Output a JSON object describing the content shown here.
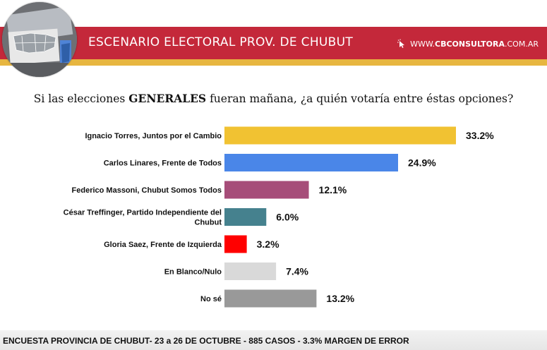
{
  "header": {
    "title": "ESCENARIO ELECTORAL PROV. DE CHUBUT",
    "site": {
      "prefix": "WWW.",
      "brand": "CBCONSULTORA",
      "suffix": ".COM.AR"
    }
  },
  "question": {
    "before": "Si las elecciones ",
    "emph": "GENERALES",
    "after": " fueran mañana, ¿a quién votaría entre éstas opciones?"
  },
  "chart_data": {
    "type": "bar",
    "orientation": "horizontal",
    "categories": [
      [
        "Ignacio Torres, Juntos por el Cambio"
      ],
      [
        "Carlos Linares, Frente de Todos"
      ],
      [
        "Federico Massoni, Chubut Somos Todos"
      ],
      [
        "César Treffinger, Partido Independiente del",
        "Chubut"
      ],
      [
        "Gloria Saez, Frente de Izquierda"
      ],
      [
        "En Blanco/Nulo"
      ],
      [
        "No sé"
      ]
    ],
    "values": [
      33.2,
      24.9,
      12.1,
      6.0,
      3.2,
      7.4,
      13.2
    ],
    "labels": [
      "33.2%",
      "24.9%",
      "12.1%",
      "6.0%",
      "3.2%",
      "7.4%",
      "13.2%"
    ],
    "colors": [
      "#f1c232",
      "#4a86e8",
      "#a64d79",
      "#45818e",
      "#ff0000",
      "#d9d9d9",
      "#999999"
    ],
    "xlim": [
      0,
      33.2
    ]
  },
  "footer": {
    "text": "ENCUESTA PROVINCIA DE CHUBUT- 23 a 26 DE OCTUBRE - 885 CASOS - 3.3% MARGEN DE ERROR"
  }
}
